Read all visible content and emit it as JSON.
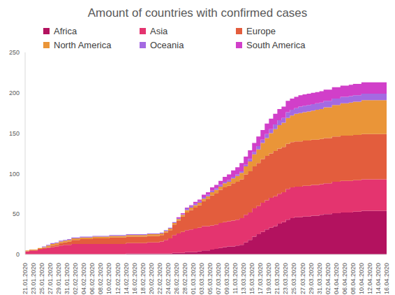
{
  "chart_data": {
    "type": "area",
    "title": "Amount of countries with confirmed cases",
    "stacked": true,
    "line_style": "step",
    "grid": false,
    "legend": "top",
    "categories": [
      "21.01.2020",
      null,
      "23.01.2020",
      null,
      "25.01.2020",
      null,
      "27.01.2020",
      null,
      "29.01.2020",
      null,
      "31.01.2020",
      null,
      "02.02.2020",
      null,
      "04.02.2020",
      null,
      "06.02.2020",
      null,
      "08.02.2020",
      null,
      "10.02.2020",
      null,
      "12.02.2020",
      null,
      "14.02.2020",
      null,
      "16.02.2020",
      null,
      "18.02.2020",
      null,
      "20.02.2020",
      null,
      "22.02.2020",
      null,
      "24.02.2020",
      null,
      "26.02.2020",
      null,
      "28.02.2020",
      null,
      "01.03.2020",
      null,
      "03.03.2020",
      null,
      "05.03.2020",
      null,
      "07.03.2020",
      null,
      "09.03.2020",
      null,
      "11.03.2020",
      null,
      "13.03.2020",
      null,
      "15.03.2020",
      null,
      "17.03.2020",
      null,
      "19.03.2020",
      null,
      "21.03.2020",
      null,
      "23.03.2020",
      null,
      "25.03.2020",
      null,
      "27.03.2020",
      null,
      "29.03.2020",
      null,
      "31.03.2020",
      null,
      "02.04.2020",
      null,
      "04.04.2020",
      null,
      "06.04.2020",
      null,
      "08.04.2020",
      null,
      "10.04.2020",
      null,
      "12.04.2020",
      null,
      "14.04.2020",
      null,
      "16.04.2020"
    ],
    "ylim": [
      0,
      250
    ],
    "yticks": [
      0,
      50,
      100,
      150,
      200,
      250
    ],
    "series": [
      {
        "name": "Africa",
        "color": "#b3125f",
        "values": [
          0,
          0,
          0,
          0,
          0,
          0,
          0,
          0,
          0,
          0,
          0,
          0,
          0,
          0,
          0,
          0,
          0,
          0,
          0,
          0,
          0,
          0,
          0,
          0,
          1,
          1,
          1,
          1,
          1,
          1,
          1,
          1,
          1,
          1,
          1,
          2,
          2,
          2,
          3,
          3,
          3,
          4,
          5,
          5,
          6,
          7,
          8,
          9,
          10,
          10,
          11,
          12,
          15,
          18,
          22,
          25,
          28,
          31,
          33,
          35,
          38,
          40,
          43,
          45,
          46,
          46,
          47,
          47,
          48,
          48,
          49,
          50,
          50,
          51,
          51,
          52,
          52,
          52,
          53,
          53,
          54,
          54,
          54,
          54,
          54,
          54,
          54
        ]
      },
      {
        "name": "Asia",
        "color": "#e4346f",
        "values": [
          4,
          5,
          5,
          6,
          7,
          8,
          9,
          10,
          11,
          12,
          12,
          13,
          13,
          13,
          13,
          13,
          13,
          13,
          13,
          13,
          13,
          13,
          13,
          13,
          13,
          13,
          13,
          13,
          13,
          14,
          14,
          14,
          15,
          17,
          19,
          22,
          24,
          26,
          27,
          28,
          29,
          29,
          30,
          30,
          30,
          30,
          31,
          31,
          31,
          32,
          32,
          33,
          34,
          34,
          35,
          35,
          36,
          36,
          37,
          37,
          37,
          37,
          38,
          38,
          38,
          38,
          38,
          38,
          38,
          38,
          38,
          38,
          38,
          39,
          39,
          39,
          39,
          39,
          39,
          39,
          39,
          39,
          39,
          39,
          39,
          39,
          39
        ]
      },
      {
        "name": "Europe",
        "color": "#e35d3d",
        "values": [
          0,
          0,
          0,
          1,
          1,
          1,
          2,
          2,
          3,
          3,
          4,
          5,
          5,
          6,
          6,
          6,
          7,
          7,
          7,
          7,
          8,
          8,
          8,
          8,
          8,
          8,
          8,
          8,
          8,
          8,
          8,
          8,
          8,
          9,
          10,
          13,
          16,
          19,
          22,
          24,
          26,
          28,
          31,
          34,
          37,
          39,
          41,
          43,
          44,
          46,
          47,
          48,
          50,
          51,
          52,
          53,
          54,
          55,
          55,
          56,
          56,
          56,
          56,
          56,
          56,
          56,
          56,
          56,
          56,
          56,
          56,
          56,
          56,
          56,
          56,
          56,
          56,
          56,
          56,
          56,
          56,
          56,
          56,
          56,
          56,
          56,
          56
        ]
      },
      {
        "name": "North America",
        "color": "#ea9538",
        "values": [
          1,
          1,
          1,
          1,
          1,
          2,
          2,
          2,
          2,
          2,
          2,
          2,
          2,
          2,
          2,
          2,
          2,
          2,
          2,
          2,
          2,
          2,
          2,
          2,
          2,
          2,
          2,
          2,
          2,
          2,
          2,
          2,
          2,
          2,
          2,
          2,
          2,
          2,
          3,
          3,
          3,
          3,
          3,
          3,
          4,
          4,
          4,
          5,
          5,
          6,
          7,
          8,
          10,
          12,
          15,
          17,
          20,
          22,
          25,
          27,
          29,
          30,
          32,
          33,
          34,
          35,
          35,
          36,
          36,
          37,
          37,
          38,
          38,
          39,
          39,
          40,
          40,
          41,
          41,
          41,
          42,
          42,
          42,
          42,
          42,
          42,
          42
        ]
      },
      {
        "name": "Oceania",
        "color": "#a46ae2",
        "values": [
          0,
          0,
          0,
          0,
          1,
          1,
          1,
          1,
          1,
          1,
          1,
          1,
          1,
          1,
          1,
          1,
          1,
          1,
          1,
          1,
          1,
          1,
          1,
          1,
          1,
          1,
          1,
          1,
          1,
          1,
          1,
          1,
          1,
          1,
          1,
          1,
          1,
          1,
          2,
          2,
          2,
          2,
          2,
          2,
          2,
          2,
          2,
          2,
          2,
          2,
          2,
          2,
          2,
          3,
          3,
          4,
          4,
          5,
          5,
          6,
          6,
          6,
          7,
          7,
          7,
          8,
          8,
          8,
          8,
          8,
          8,
          8,
          8,
          8,
          8,
          8,
          8,
          8,
          8,
          8,
          8,
          8,
          8,
          8,
          8,
          8,
          8
        ]
      },
      {
        "name": "South America",
        "color": "#d13fc9",
        "values": [
          0,
          0,
          0,
          0,
          0,
          0,
          0,
          0,
          0,
          0,
          0,
          0,
          0,
          0,
          0,
          0,
          0,
          0,
          0,
          0,
          0,
          0,
          0,
          0,
          0,
          0,
          0,
          0,
          0,
          0,
          0,
          0,
          0,
          0,
          0,
          0,
          1,
          1,
          1,
          1,
          2,
          2,
          3,
          3,
          4,
          4,
          5,
          6,
          7,
          8,
          9,
          10,
          10,
          11,
          11,
          12,
          12,
          13,
          13,
          13,
          14,
          14,
          14,
          14,
          14,
          14,
          14,
          14,
          14,
          14,
          14,
          14,
          14,
          14,
          14,
          14,
          14,
          14,
          14,
          14,
          14,
          14,
          14,
          14,
          14,
          14,
          14
        ]
      }
    ]
  }
}
